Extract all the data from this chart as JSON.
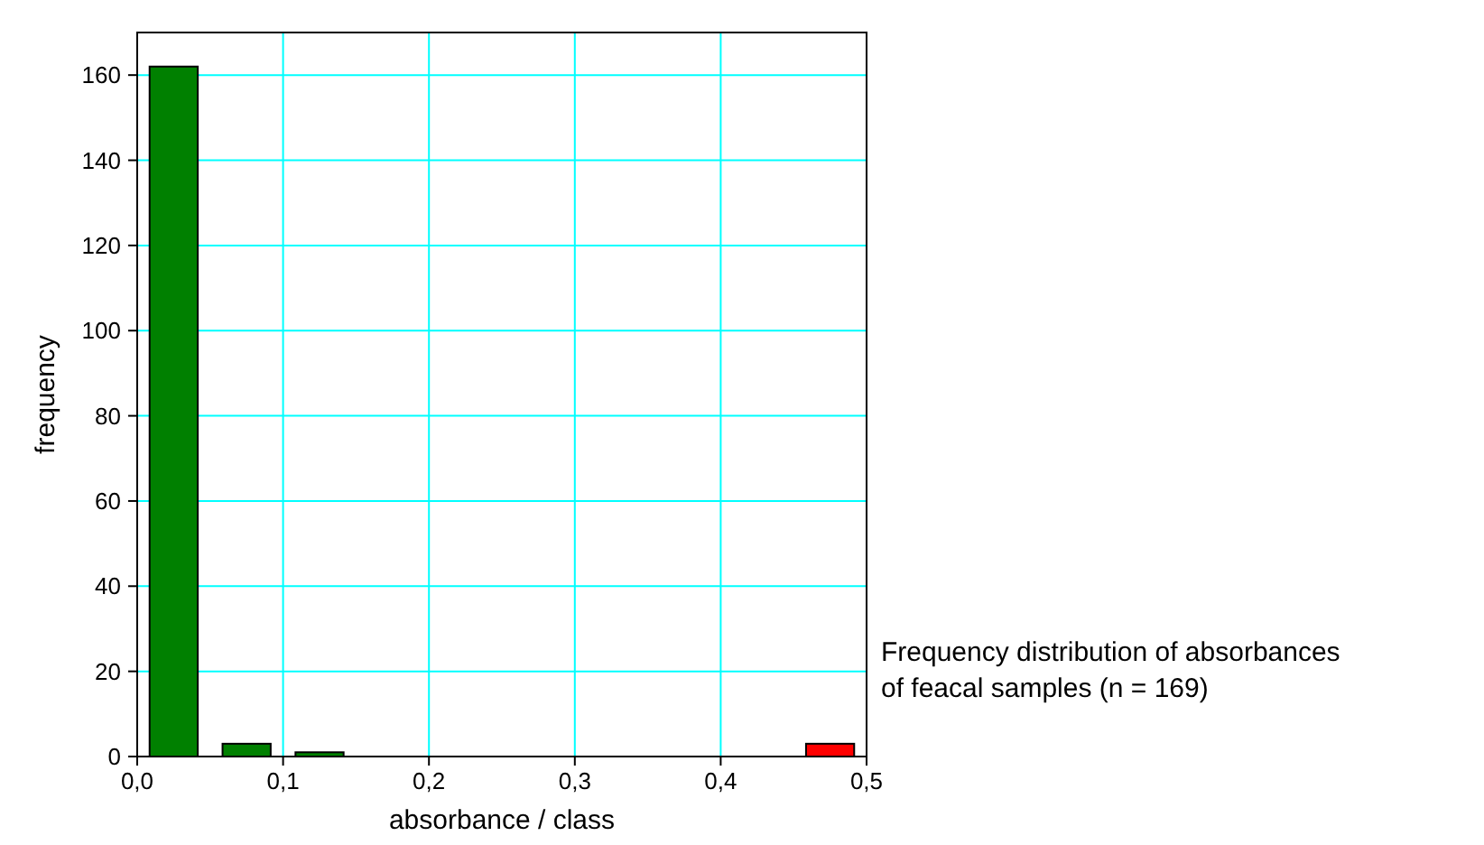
{
  "chart_data": {
    "type": "bar",
    "xlabel": "absorbance / class",
    "ylabel": "frequency",
    "x": [
      0.025,
      0.075,
      0.125,
      0.175,
      0.225,
      0.275,
      0.325,
      0.375,
      0.425,
      0.475
    ],
    "values": [
      162,
      3,
      1,
      0,
      0,
      0,
      0,
      0,
      0,
      3
    ],
    "colors": [
      "#008000",
      "#008000",
      "#008000",
      "#008000",
      "#008000",
      "#008000",
      "#008000",
      "#008000",
      "#008000",
      "#ff0000"
    ],
    "xlim": [
      0,
      0.5
    ],
    "xticks": [
      {
        "value": 0,
        "label": "0,0"
      },
      {
        "value": 0.1,
        "label": "0,1"
      },
      {
        "value": 0.2,
        "label": "0,2"
      },
      {
        "value": 0.3,
        "label": "0,3"
      },
      {
        "value": 0.4,
        "label": "0,4"
      },
      {
        "value": 0.5,
        "label": "0,5"
      }
    ],
    "ylim": [
      0,
      170
    ],
    "yticks": [
      0,
      20,
      40,
      60,
      80,
      100,
      120,
      140,
      160
    ],
    "grid": true,
    "annotations": [
      "Frequency distribution of absorbances of feacal samples (n = 169)"
    ]
  }
}
